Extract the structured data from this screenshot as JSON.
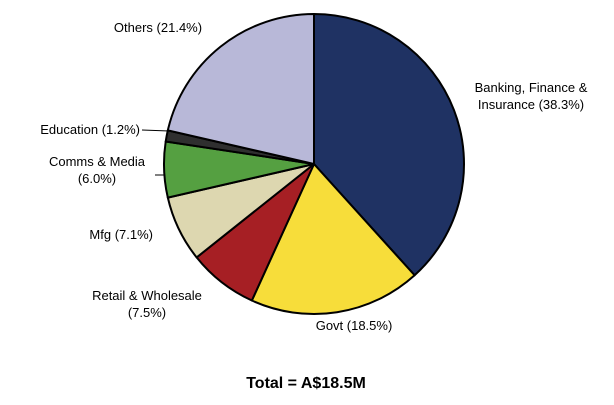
{
  "chart_data": {
    "type": "pie",
    "title": "",
    "start_angle_deg": 0,
    "direction": "clockwise",
    "slices": [
      {
        "label_lines": [
          "Banking, Finance &",
          "Insurance (38.3%)"
        ],
        "value": 38.3,
        "color": "#1f3263"
      },
      {
        "label_lines": [
          "Govt (18.5%)"
        ],
        "value": 18.5,
        "color": "#f7dd3a"
      },
      {
        "label_lines": [
          "Retail & Wholesale",
          "(7.5%)"
        ],
        "value": 7.5,
        "color": "#a61f24"
      },
      {
        "label_lines": [
          "Mfg (7.1%)"
        ],
        "value": 7.1,
        "color": "#ddd7b0"
      },
      {
        "label_lines": [
          "Comms & Media",
          "(6.0%)"
        ],
        "value": 6.0,
        "color": "#55a041"
      },
      {
        "label_lines": [
          "Education (1.2%)"
        ],
        "value": 1.2,
        "color": "#2f2f2f"
      },
      {
        "label_lines": [
          "Others (21.4%)"
        ],
        "value": 21.4,
        "color": "#b8b8d8"
      }
    ],
    "footer": "Total = A$18.5M"
  }
}
